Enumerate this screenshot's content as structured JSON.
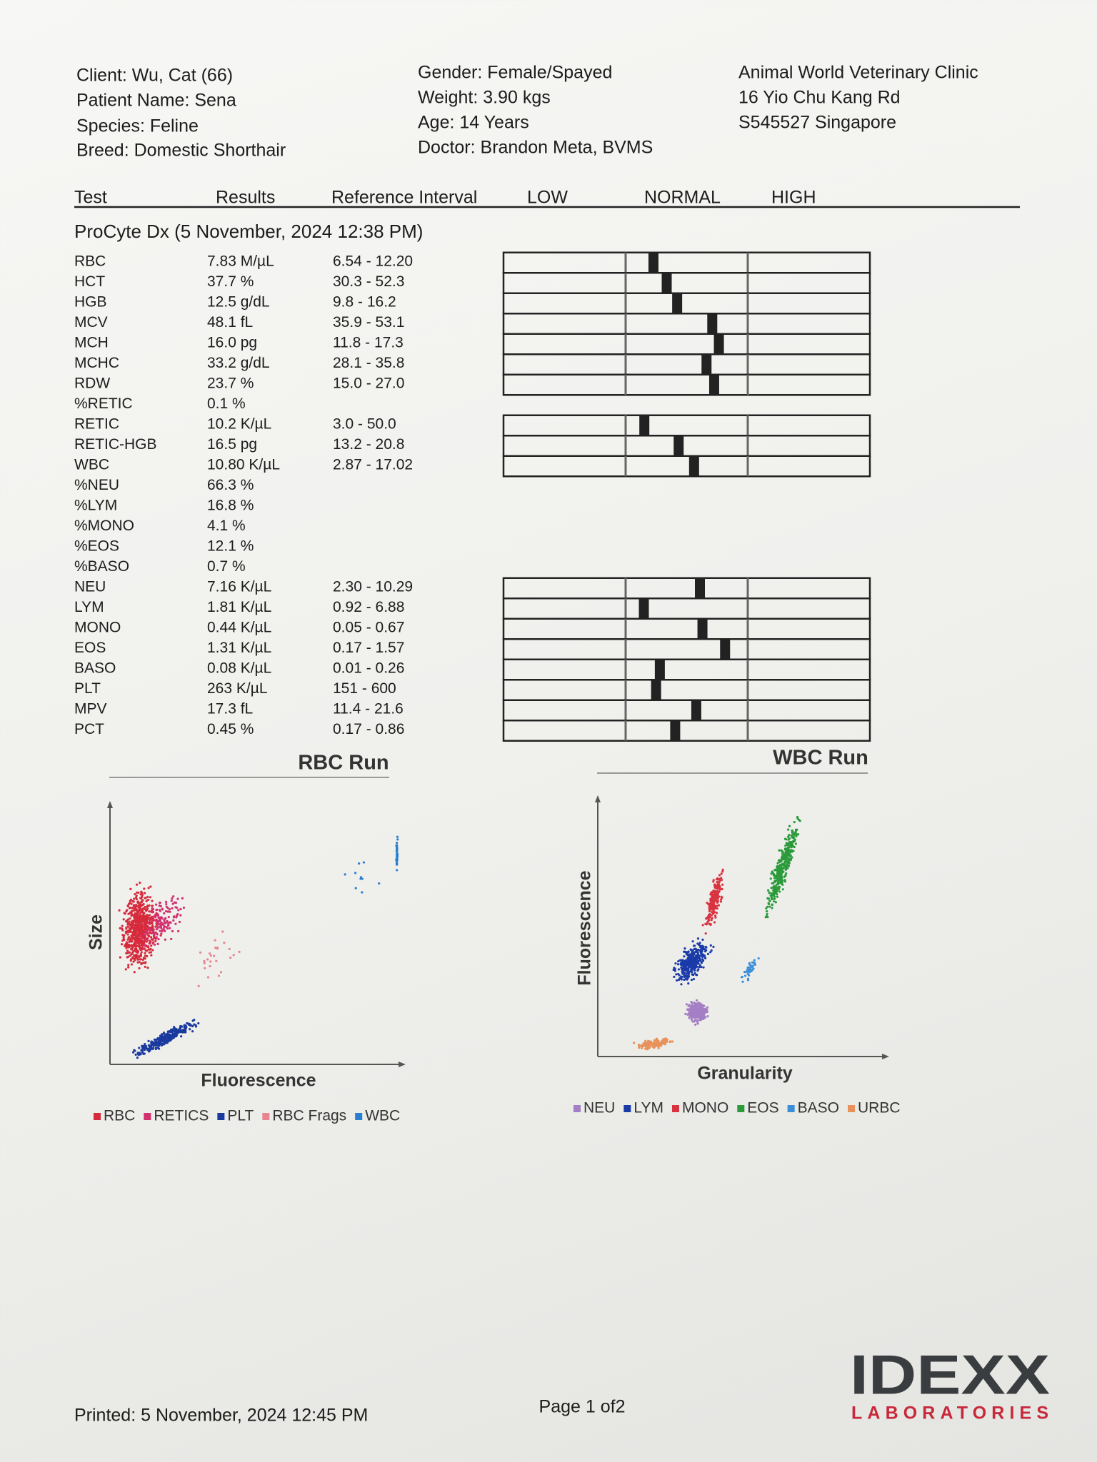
{
  "header": {
    "client": "Client: Wu, Cat (66)",
    "patient": "Patient Name: Sena",
    "species": "Species: Feline",
    "breed": "Breed: Domestic Shorthair",
    "gender": "Gender: Female/Spayed",
    "weight": "Weight: 3.90 kgs",
    "age": "Age: 14 Years",
    "doctor": "Doctor: Brandon Meta, BVMS",
    "clinic": "Animal World Veterinary Clinic",
    "address": "16 Yio Chu Kang Rd",
    "city": "S545527 Singapore"
  },
  "table": {
    "columns": [
      "Test",
      "Results",
      "Reference Interval",
      "LOW",
      "NORMAL",
      "HIGH"
    ],
    "run": "ProCyte Dx (5 November, 2024 12:38 PM)",
    "rows": [
      [
        "RBC",
        "7.83 M/µL",
        "6.54 - 12.20"
      ],
      [
        "HCT",
        "37.7 %",
        "30.3 - 52.3"
      ],
      [
        "HGB",
        "12.5 g/dL",
        "9.8 - 16.2"
      ],
      [
        "MCV",
        "48.1 fL",
        "35.9 - 53.1"
      ],
      [
        "MCH",
        "16.0 pg",
        "11.8 - 17.3"
      ],
      [
        "MCHC",
        "33.2 g/dL",
        "28.1 - 35.8"
      ],
      [
        "RDW",
        "23.7 %",
        "15.0 - 27.0"
      ],
      [
        "%RETIC",
        "0.1 %"
      ],
      [
        "RETIC",
        "10.2 K/µL",
        "3.0 - 50.0"
      ],
      [
        "RETIC-HGB",
        "16.5 pg",
        "13.2 - 20.8"
      ],
      [
        "WBC",
        "10.80 K/µL",
        "2.87 - 17.02"
      ],
      [
        "%NEU",
        "66.3 %"
      ],
      [
        "%LYM",
        "16.8 %"
      ],
      [
        "%MONO",
        "4.1 %"
      ],
      [
        "%EOS",
        "12.1 %"
      ],
      [
        "%BASO",
        "0.7 %"
      ],
      [
        "NEU",
        "7.16 K/µL",
        "2.30 - 10.29"
      ],
      [
        "LYM",
        "1.81 K/µL",
        "0.92 - 6.88"
      ],
      [
        "MONO",
        "0.44 K/µL",
        "0.05 - 0.67"
      ],
      [
        "EOS",
        "1.31 K/µL",
        "0.17 - 1.57"
      ],
      [
        "BASO",
        "0.08 K/µL",
        "0.01 - 0.26"
      ],
      [
        "PLT",
        "263 K/µL",
        "151 - 600"
      ],
      [
        "MPV",
        "17.3 fL",
        "11.4 - 21.6"
      ],
      [
        "PCT",
        "0.45 %",
        "0.17 - 0.86"
      ]
    ]
  },
  "rbc_run": {
    "title": "RBC Run",
    "x_label": "Fluorescence",
    "y_label": "Size",
    "legend": [
      {
        "name": "RBC",
        "color": "#d62b3c"
      },
      {
        "name": "RETICS",
        "color": "#d2306e"
      },
      {
        "name": "PLT",
        "color": "#1a3a9e"
      },
      {
        "name": "RBC Frags",
        "color": "#e8868f"
      },
      {
        "name": "WBC",
        "color": "#2a7fd0"
      }
    ]
  },
  "wbc_run": {
    "title": "WBC Run",
    "x_label": "Granularity",
    "y_label": "Fluorescence",
    "legend": [
      {
        "name": "NEU",
        "color": "#a57fc5"
      },
      {
        "name": "LYM",
        "color": "#1a3aa8"
      },
      {
        "name": "MONO",
        "color": "#d93340"
      },
      {
        "name": "EOS",
        "color": "#2a9a3a"
      },
      {
        "name": "BASO",
        "color": "#3a8fd8"
      },
      {
        "name": "URBC",
        "color": "#e8925a"
      }
    ]
  },
  "footer": {
    "printed": "Printed: 5 November, 2024 12:45 PM",
    "page": "Page 1 of2",
    "logo": "IDEXX",
    "logo_sub": "LABORATORIES"
  }
}
